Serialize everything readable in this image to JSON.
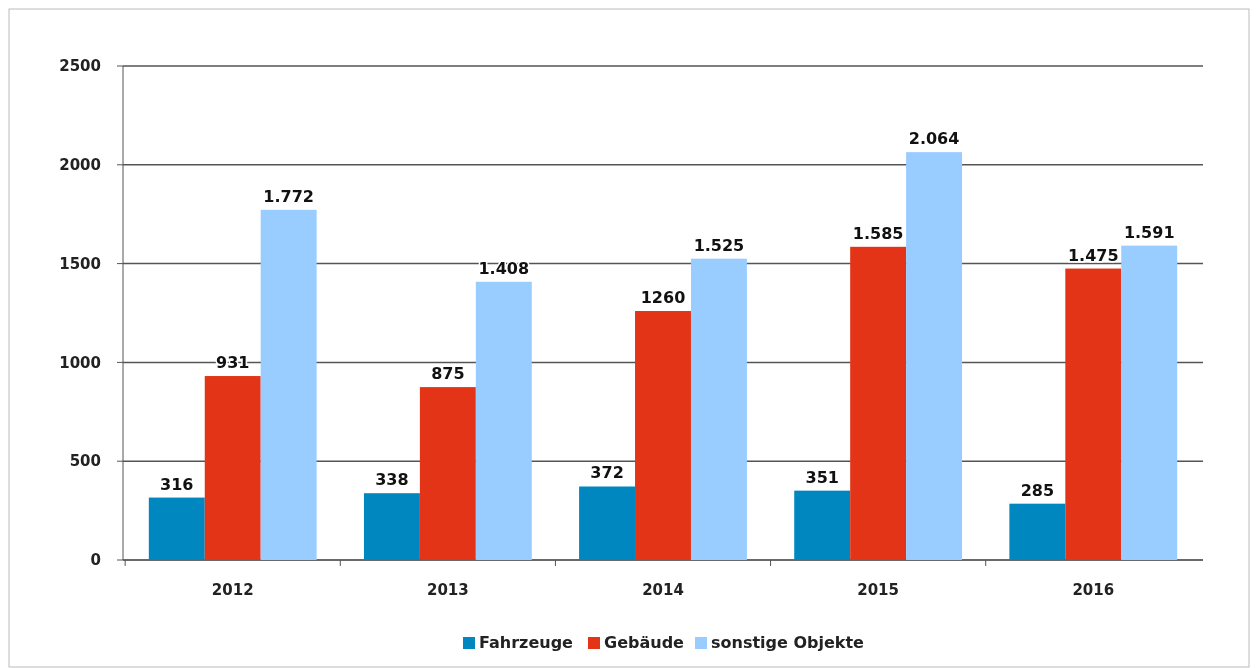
{
  "chart_data": {
    "type": "bar",
    "categories": [
      "2012",
      "2013",
      "2014",
      "2015",
      "2016"
    ],
    "series": [
      {
        "name": "Fahrzeuge",
        "color": "#0087c0",
        "values": [
          316,
          338,
          372,
          351,
          285
        ],
        "value_labels": [
          "316",
          "338",
          "372",
          "351",
          "285"
        ]
      },
      {
        "name": "Gebäude",
        "color": "#e33417",
        "values": [
          931,
          875,
          1260,
          1585,
          1475
        ],
        "value_labels": [
          "931",
          "875",
          "1260",
          "1.585",
          "1.475"
        ]
      },
      {
        "name": "sonstige Objekte",
        "color": "#99ccff",
        "values": [
          1772,
          1408,
          1525,
          2064,
          1591
        ],
        "value_labels": [
          "1.772",
          "1.408",
          "1.525",
          "2.064",
          "1.591"
        ]
      }
    ],
    "ylim": [
      0,
      2500
    ],
    "yticks": [
      0,
      500,
      1000,
      1500,
      2000,
      2500
    ],
    "grid": "y",
    "legend": "bottom"
  }
}
